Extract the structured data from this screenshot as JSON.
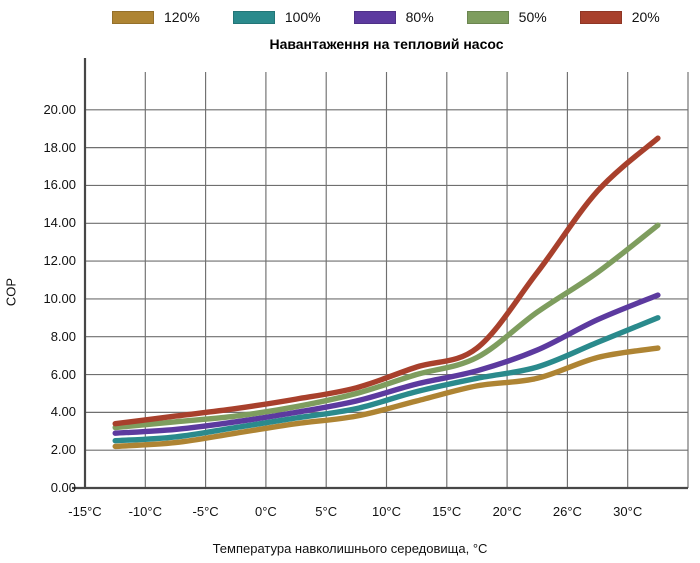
{
  "chart_data": {
    "type": "line",
    "title": "Навантаження на тепловий насос",
    "xlabel": "Температура навколишнього середовища, °C",
    "ylabel": "COP",
    "categories": [
      "-15°C",
      "-10°C",
      "-5°C",
      "0°C",
      "5°C",
      "10°C",
      "15°C",
      "20°C",
      "26°C",
      "30°C"
    ],
    "series": [
      {
        "name": "120%",
        "color": "#AE8433",
        "values": [
          2.2,
          2.4,
          2.9,
          3.4,
          3.8,
          4.6,
          5.4,
          5.8,
          6.9,
          7.4
        ]
      },
      {
        "name": "100%",
        "color": "#2A8A8C",
        "values": [
          2.5,
          2.7,
          3.2,
          3.7,
          4.2,
          5.1,
          5.8,
          6.4,
          7.7,
          9.0
        ]
      },
      {
        "name": "80%",
        "color": "#5C3A9F",
        "values": [
          2.9,
          3.1,
          3.5,
          4.0,
          4.6,
          5.5,
          6.2,
          7.3,
          8.9,
          10.2
        ]
      },
      {
        "name": "50%",
        "color": "#7E9D5E",
        "values": [
          3.2,
          3.5,
          3.8,
          4.3,
          5.0,
          6.0,
          6.9,
          9.3,
          11.4,
          13.9
        ]
      },
      {
        "name": "20%",
        "color": "#A8402C",
        "values": [
          3.4,
          3.8,
          4.2,
          4.7,
          5.3,
          6.4,
          7.4,
          11.4,
          15.7,
          18.5
        ]
      }
    ],
    "ylim": [
      0,
      22
    ],
    "ytick_step": 2,
    "ytick_labels": [
      "0.00",
      "2.00",
      "4.00",
      "6.00",
      "8.00",
      "10.00",
      "12.00",
      "14.00",
      "16.00",
      "18.00",
      "20.00"
    ],
    "grid": true,
    "legend_position": "top",
    "grid_color": "#6F6F6F",
    "axis_color": "#474747"
  }
}
